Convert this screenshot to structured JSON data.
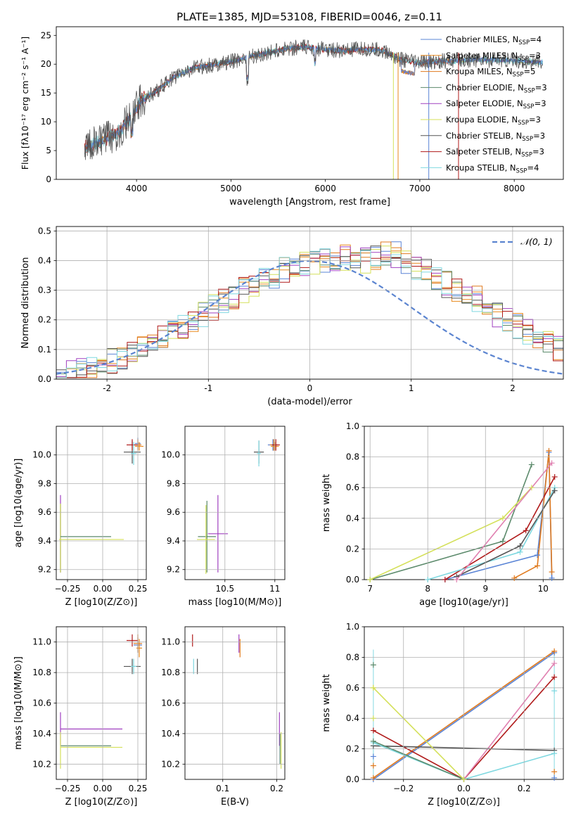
{
  "figure_title": "PLATE=1385, MJD=53108, FIBERID=0046, z=0.11",
  "colors": {
    "Chabrier MILES": "#5a84d6",
    "Salpeter MILES": "#e8891d",
    "Kroupa MILES": "#e07a1e",
    "Chabrier ELODIE": "#5b8a6b",
    "Salpeter ELODIE": "#a040c0",
    "Kroupa ELODIE": "#d4e05a",
    "Chabrier STELIB": "#555555",
    "Salpeter STELIB": "#b01a1a",
    "Kroupa STELIB": "#7fd8e0",
    "gaussian": "#5b84d0",
    "pink": "#e080b0"
  },
  "chart_data": [
    {
      "id": "spectrum",
      "type": "line",
      "title": "PLATE=1385, MJD=53108, FIBERID=0046, z=0.11",
      "xlabel": "wavelength [Angstrom, rest frame]",
      "ylabel": "Flux [fλ10⁻¹⁷ erg cm⁻² s⁻¹ A⁻¹]",
      "xlim": [
        3150,
        8520
      ],
      "ylim": [
        0,
        26.5
      ],
      "xticks": [
        4000,
        5000,
        6000,
        7000,
        8000
      ],
      "yticks": [
        0,
        5,
        10,
        15,
        20,
        25
      ],
      "legend_position": "top-right",
      "legend": [
        "Chabrier MILES, N_SSP=4",
        "Salpeter MILES, N_SSP=3",
        "Kroupa MILES, N_SSP=5",
        "Chabrier ELODIE, N_SSP=3",
        "Salpeter ELODIE, N_SSP=3",
        "Kroupa ELODIE, N_SSP=3",
        "Chabrier STELIB, N_SSP=3",
        "Salpeter STELIB, N_SSP=3",
        "Kroupa STELIB, N_SSP=4"
      ],
      "series_continuum": {
        "x": [
          3450,
          3600,
          3800,
          3950,
          4050,
          4200,
          4400,
          4600,
          4800,
          5000,
          5200,
          5400,
          5600,
          5800,
          6000,
          6200,
          6400,
          6600,
          6800,
          7000,
          7200,
          7400,
          7600,
          7800,
          8000,
          8200,
          8300
        ],
        "y": [
          5.5,
          6.5,
          8.0,
          11.0,
          13.8,
          15.2,
          17.8,
          19.3,
          19.9,
          20.4,
          21.3,
          22.0,
          22.8,
          22.9,
          22.6,
          22.3,
          22.6,
          22.4,
          20.8,
          20.2,
          20.5,
          20.6,
          20.8,
          20.7,
          20.6,
          20.4,
          20.3
        ]
      },
      "grid": false
    },
    {
      "id": "residuals",
      "type": "histogram",
      "xlabel": "(data-model)/error",
      "ylabel": "Normed distribution",
      "xlim": [
        -2.5,
        2.5
      ],
      "ylim": [
        0,
        0.515
      ],
      "xticks": [
        -2,
        -1,
        0,
        1,
        2
      ],
      "yticks": [
        0.0,
        0.1,
        0.2,
        0.3,
        0.4,
        0.5
      ],
      "legend_position": "top-right",
      "legend": [
        "N(0,1)"
      ],
      "bin_width": 0.1,
      "envelope": [
        0.02,
        0.025,
        0.03,
        0.04,
        0.05,
        0.06,
        0.07,
        0.08,
        0.1,
        0.12,
        0.14,
        0.16,
        0.18,
        0.2,
        0.22,
        0.24,
        0.26,
        0.28,
        0.3,
        0.31,
        0.33,
        0.35,
        0.37,
        0.38,
        0.39,
        0.39,
        0.4,
        0.4,
        0.41,
        0.41,
        0.4,
        0.41,
        0.42,
        0.42,
        0.4,
        0.38,
        0.36,
        0.34,
        0.32,
        0.3,
        0.29,
        0.27,
        0.25,
        0.22,
        0.2,
        0.18,
        0.16,
        0.14,
        0.12,
        0.1
      ],
      "grid": true
    },
    {
      "id": "age-vs-Z",
      "type": "errorbar",
      "xlabel": "Z [log10(Z/Z⊙)]",
      "ylabel": "age  [log10(age/yr)]",
      "xlim": [
        -0.33,
        0.31
      ],
      "ylim": [
        9.13,
        10.2
      ],
      "xticks": [
        -0.25,
        0.0,
        0.25
      ],
      "xticklabels": [
        "−0.25",
        "0.00",
        "0.25"
      ],
      "yticks": [
        9.2,
        9.4,
        9.6,
        9.8,
        10.0
      ],
      "points": [
        {
          "s": "Chabrier MILES",
          "x": 0.25,
          "y": 10.08,
          "xe": 0.02,
          "ye": 0.04
        },
        {
          "s": "Salpeter MILES",
          "x": 0.26,
          "y": 10.06,
          "xe": 0.03,
          "ye": 0.03
        },
        {
          "s": "Kroupa MILES",
          "x": 0.25,
          "y": 10.07,
          "xe": 0.025,
          "ye": 0.04
        },
        {
          "s": "Chabrier ELODIE",
          "x": -0.3,
          "y": 9.42,
          "xe": 0.0,
          "ye": 0.24
        },
        {
          "s": "Salpeter ELODIE",
          "x": -0.3,
          "y": 9.45,
          "xe": 0.0,
          "ye": 0.27
        },
        {
          "s": "Kroupa ELODIE",
          "x": -0.3,
          "y": 9.42,
          "xe": 0.0,
          "ye": 0.24
        },
        {
          "s": "Chabrier STELIB",
          "x": 0.21,
          "y": 10.02,
          "xe": 0.06,
          "ye": 0.08
        },
        {
          "s": "Salpeter STELIB",
          "x": 0.21,
          "y": 10.07,
          "xe": 0.04,
          "ye": 0.04
        },
        {
          "s": "Kroupa STELIB",
          "x": 0.22,
          "y": 10.01,
          "xe": 0.02,
          "ye": 0.08
        },
        {
          "s": "Chabrier ELODIE",
          "x": -0.12,
          "y": 9.43,
          "xe": 0.18,
          "ye": 0.0
        },
        {
          "s": "Kroupa ELODIE",
          "x": -0.08,
          "y": 9.41,
          "xe": 0.23,
          "ye": 0.0
        }
      ],
      "grid": true
    },
    {
      "id": "age-vs-mass",
      "type": "errorbar",
      "xlabel": "mass [log10(M/M⊙)]",
      "ylabel": "",
      "xlim": [
        10.1,
        11.1
      ],
      "ylim": [
        9.13,
        10.2
      ],
      "xticks": [
        10.5,
        11.0
      ],
      "yticks": [
        9.2,
        9.4,
        9.6,
        9.8,
        10.0
      ],
      "points": [
        {
          "s": "Chabrier MILES",
          "x": 10.98,
          "y": 10.07,
          "xe": 0.05,
          "ye": 0.04
        },
        {
          "s": "Salpeter MILES",
          "x": 11.0,
          "y": 10.06,
          "xe": 0.04,
          "ye": 0.03
        },
        {
          "s": "Kroupa MILES",
          "x": 10.99,
          "y": 10.07,
          "xe": 0.04,
          "ye": 0.04
        },
        {
          "s": "Chabrier ELODIE",
          "x": 10.32,
          "y": 9.43,
          "xe": 0.09,
          "ye": 0.25
        },
        {
          "s": "Salpeter ELODIE",
          "x": 10.43,
          "y": 9.45,
          "xe": 0.1,
          "ye": 0.27
        },
        {
          "s": "Kroupa ELODIE",
          "x": 10.31,
          "y": 9.41,
          "xe": 0.09,
          "ye": 0.24
        },
        {
          "s": "Chabrier STELIB",
          "x": 10.84,
          "y": 10.02,
          "xe": 0.05,
          "ye": 0.08
        },
        {
          "s": "Salpeter STELIB",
          "x": 11.01,
          "y": 10.07,
          "xe": 0.04,
          "ye": 0.04
        },
        {
          "s": "Kroupa STELIB",
          "x": 10.84,
          "y": 10.01,
          "xe": 0.02,
          "ye": 0.09
        }
      ],
      "grid": true
    },
    {
      "id": "weight-vs-age",
      "type": "line",
      "xlabel": "age  [log10(age/yr)]",
      "ylabel": "mass weight",
      "xlim": [
        6.9,
        10.35
      ],
      "ylim": [
        0,
        1.0
      ],
      "xticks": [
        7,
        8,
        9,
        10
      ],
      "yticks": [
        0.0,
        0.2,
        0.4,
        0.6,
        0.8,
        1.0
      ],
      "series": [
        {
          "s": "Chabrier ELODIE",
          "x": [
            7.0,
            9.3,
            9.8
          ],
          "y": [
            0.0,
            0.25,
            0.75
          ]
        },
        {
          "s": "Kroupa ELODIE",
          "x": [
            7.0,
            9.3,
            9.8
          ],
          "y": [
            0.0,
            0.4,
            0.6
          ]
        },
        {
          "s": "Chabrier MILES",
          "x": [
            8.3,
            9.9,
            10.1,
            10.15
          ],
          "y": [
            0.0,
            0.16,
            0.83,
            0.01
          ]
        },
        {
          "s": "Kroupa MILES",
          "x": [
            9.5,
            9.9,
            10.1,
            10.15
          ],
          "y": [
            0.01,
            0.09,
            0.84,
            0.05
          ]
        },
        {
          "s": "Salpeter STELIB",
          "x": [
            8.3,
            9.7,
            10.2
          ],
          "y": [
            0.0,
            0.32,
            0.67
          ]
        },
        {
          "s": "Kroupa STELIB",
          "x": [
            8.0,
            9.6,
            10.2
          ],
          "y": [
            0.0,
            0.18,
            0.6
          ]
        },
        {
          "s": "Chabrier STELIB",
          "x": [
            8.5,
            9.6,
            10.2
          ],
          "y": [
            0.02,
            0.22,
            0.58
          ]
        },
        {
          "s": "pink",
          "x": [
            8.5,
            10.15
          ],
          "y": [
            0.0,
            0.76
          ]
        }
      ],
      "grid": true
    },
    {
      "id": "mass-vs-Z",
      "type": "errorbar",
      "xlabel": "Z [log10(Z/Z⊙)]",
      "ylabel": "mass [log10(M/M⊙)]",
      "xlim": [
        -0.33,
        0.31
      ],
      "ylim": [
        10.1,
        11.1
      ],
      "xticks": [
        -0.25,
        0.0,
        0.25
      ],
      "xticklabels": [
        "−0.25",
        "0.00",
        "0.25"
      ],
      "yticks": [
        10.2,
        10.4,
        10.6,
        10.8,
        11.0
      ],
      "points": [
        {
          "s": "Chabrier MILES",
          "x": 0.25,
          "y": 10.98,
          "xe": 0.03,
          "ye": 0.05
        },
        {
          "s": "Salpeter MILES",
          "x": 0.26,
          "y": 10.96,
          "xe": 0.02,
          "ye": 0.06
        },
        {
          "s": "Kroupa MILES",
          "x": 0.25,
          "y": 10.99,
          "xe": 0.03,
          "ye": 0.06
        },
        {
          "s": "Chabrier ELODIE",
          "x": -0.12,
          "y": 10.32,
          "xe": 0.18,
          "ye": 0.0
        },
        {
          "s": "Salpeter ELODIE",
          "x": -0.08,
          "y": 10.43,
          "xe": 0.22,
          "ye": 0.0
        },
        {
          "s": "Kroupa ELODIE",
          "x": -0.08,
          "y": 10.31,
          "xe": 0.22,
          "ye": 0.0
        },
        {
          "s": "Salpeter ELODIE",
          "x": -0.3,
          "y": 10.43,
          "xe": 0.0,
          "ye": 0.11
        },
        {
          "s": "Kroupa ELODIE",
          "x": -0.3,
          "y": 10.29,
          "xe": 0.0,
          "ye": 0.12
        },
        {
          "s": "Chabrier STELIB",
          "x": 0.21,
          "y": 10.84,
          "xe": 0.06,
          "ye": 0.05
        },
        {
          "s": "Salpeter STELIB",
          "x": 0.21,
          "y": 11.01,
          "xe": 0.04,
          "ye": 0.04
        },
        {
          "s": "Kroupa STELIB",
          "x": 0.22,
          "y": 10.84,
          "xe": 0.02,
          "ye": 0.05
        }
      ],
      "grid": true
    },
    {
      "id": "mass-vs-EBV",
      "type": "errorbar",
      "xlabel": "E(B-V)",
      "ylabel": "",
      "xlim": [
        0.03,
        0.215
      ],
      "ylim": [
        10.1,
        11.1
      ],
      "xticks": [
        0.1,
        0.2
      ],
      "yticks": [
        10.2,
        10.4,
        10.6,
        10.8,
        11.0
      ],
      "points": [
        {
          "s": "Salpeter STELIB",
          "x": 0.044,
          "y": 11.01,
          "xe": 0.0,
          "ye": 0.04
        },
        {
          "s": "Kroupa STELIB",
          "x": 0.046,
          "y": 10.84,
          "xe": 0.0,
          "ye": 0.05
        },
        {
          "s": "Chabrier STELIB",
          "x": 0.053,
          "y": 10.84,
          "xe": 0.0,
          "ye": 0.05
        },
        {
          "s": "Salpeter ELODIE",
          "x": 0.13,
          "y": 10.99,
          "xe": 0.0,
          "ye": 0.06
        },
        {
          "s": "Kroupa MILES",
          "x": 0.132,
          "y": 10.96,
          "xe": 0.0,
          "ye": 0.06
        },
        {
          "s": "Salpeter ELODIE",
          "x": 0.205,
          "y": 10.43,
          "xe": 0.0,
          "ye": 0.11
        },
        {
          "s": "Kroupa ELODIE",
          "x": 0.208,
          "y": 10.29,
          "xe": 0.0,
          "ye": 0.12
        },
        {
          "s": "Chabrier ELODIE",
          "x": 0.206,
          "y": 10.3,
          "xe": 0.0,
          "ye": 0.1
        }
      ],
      "grid": true
    },
    {
      "id": "weight-vs-Z",
      "type": "line",
      "xlabel": "Z [log10(Z/Z⊙)]",
      "ylabel": "mass weight",
      "xlim": [
        -0.33,
        0.33
      ],
      "ylim": [
        0,
        1.0
      ],
      "xticks": [
        -0.2,
        0.0,
        0.2
      ],
      "xticklabels": [
        "−0.2",
        "0.0",
        "0.2"
      ],
      "yticks": [
        0.0,
        0.2,
        0.4,
        0.6,
        0.8,
        1.0
      ],
      "series": [
        {
          "s": "Chabrier MILES",
          "x": [
            -0.3,
            0.3
          ],
          "y": [
            0.0,
            0.83
          ]
        },
        {
          "s": "Kroupa MILES",
          "x": [
            -0.3,
            0.3
          ],
          "y": [
            0.01,
            0.84
          ]
        },
        {
          "s": "Salpeter STELIB",
          "x": [
            -0.3,
            0.0,
            0.3
          ],
          "y": [
            0.32,
            0.0,
            0.67
          ]
        },
        {
          "s": "pink",
          "x": [
            0.0,
            0.3
          ],
          "y": [
            0.0,
            0.76
          ]
        },
        {
          "s": "Chabrier STELIB",
          "x": [
            -0.3,
            0.3
          ],
          "y": [
            0.22,
            0.19
          ]
        },
        {
          "s": "Kroupa STELIB",
          "x": [
            -0.3,
            0.0,
            0.3
          ],
          "y": [
            0.24,
            0.0,
            0.17
          ]
        },
        {
          "s": "Chabrier ELODIE",
          "x": [
            -0.3,
            0.0
          ],
          "y": [
            0.25,
            0.0
          ]
        },
        {
          "s": "Kroupa ELODIE",
          "x": [
            -0.3,
            0.0
          ],
          "y": [
            0.6,
            0.0
          ]
        }
      ],
      "markers": [
        {
          "s": "Chabrier ELODIE",
          "x": -0.3,
          "y": 0.75
        },
        {
          "s": "Kroupa ELODIE",
          "x": -0.3,
          "y": 0.6
        },
        {
          "s": "Kroupa ELODIE",
          "x": -0.3,
          "y": 0.4
        },
        {
          "s": "Chabrier MILES",
          "x": -0.3,
          "y": 0.15
        },
        {
          "s": "Kroupa MILES",
          "x": -0.3,
          "y": 0.09
        },
        {
          "s": "Kroupa STELIB",
          "x": 0.3,
          "y": 0.58
        },
        {
          "s": "Chabrier MILES",
          "x": 0.3,
          "y": 0.01
        },
        {
          "s": "Kroupa MILES",
          "x": 0.3,
          "y": 0.05
        }
      ],
      "grid": true
    }
  ]
}
